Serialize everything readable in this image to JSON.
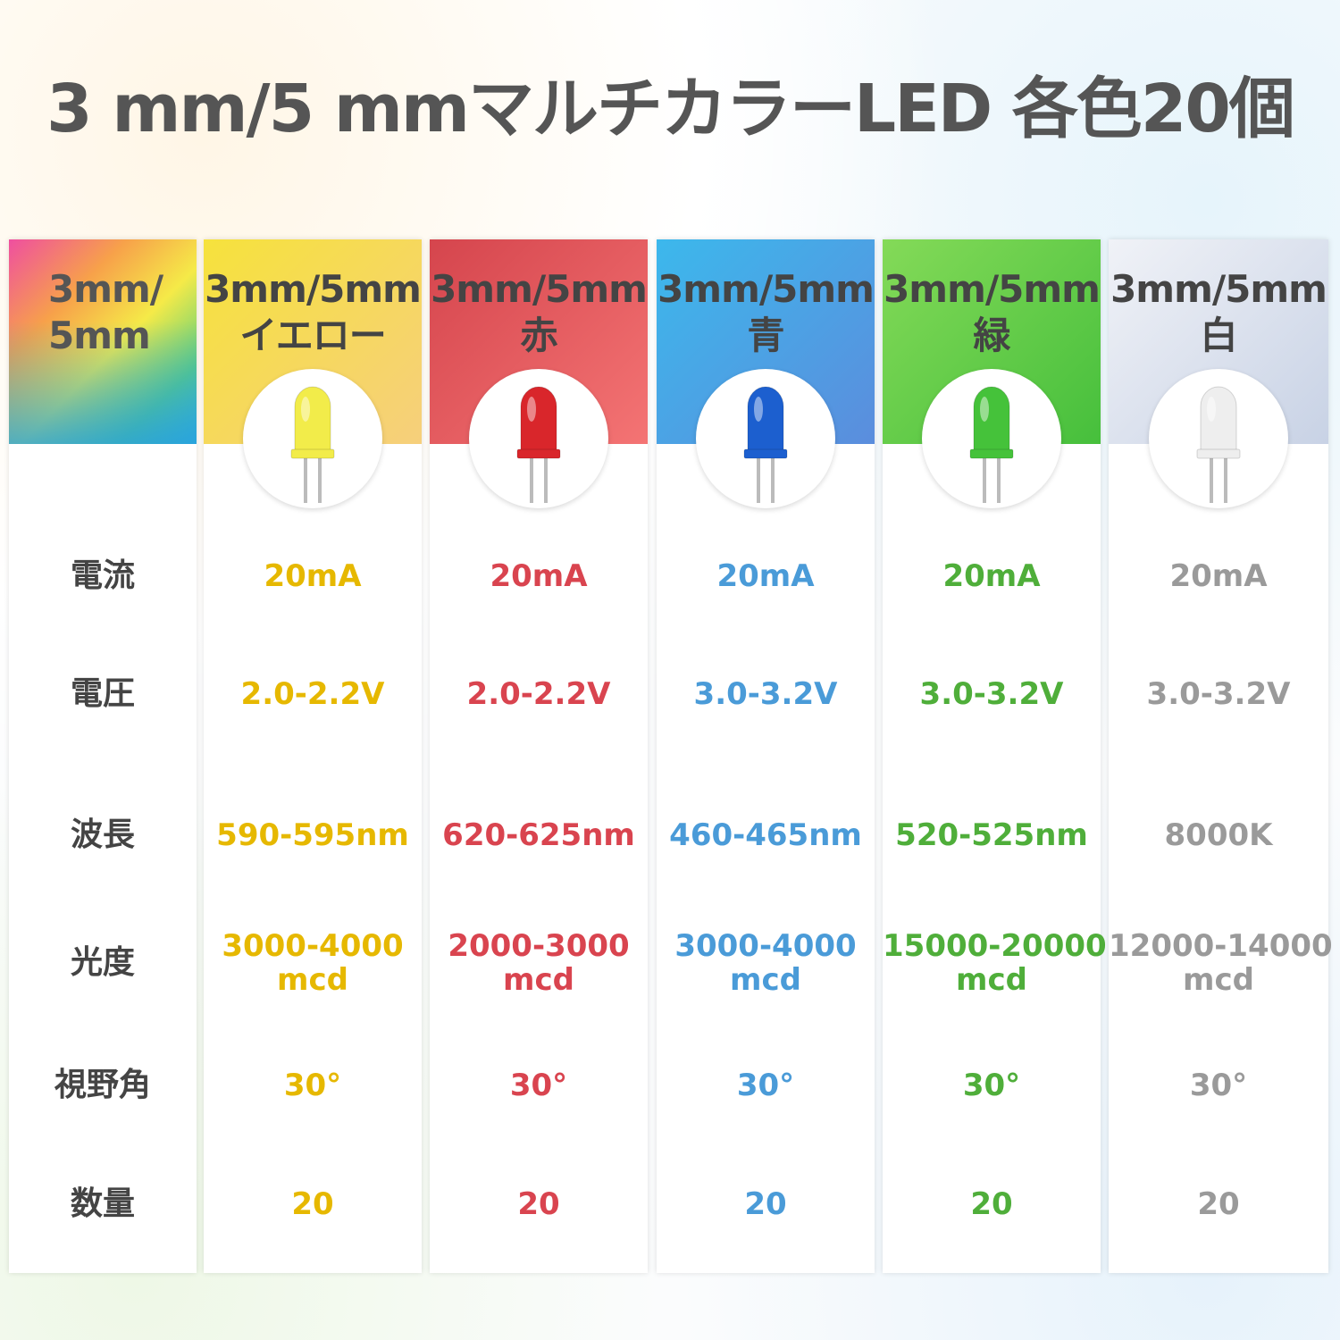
{
  "title": "3 mm/5 mmマルチカラーLED 各色20個",
  "table": {
    "corner": [
      "3mm/",
      "5mm"
    ],
    "row_labels": [
      "電流",
      "電圧",
      "波長",
      "光度",
      "視野角",
      "数量"
    ],
    "columns": [
      {
        "header": [
          "3mm/5mm",
          "イエロー"
        ],
        "color": "#e6b800",
        "header_colors": [
          "#f6e23c",
          "#f6cf7c"
        ],
        "led_color": "#f2ec4a",
        "cells": [
          [
            "20mA"
          ],
          [
            "2.0-2.2V"
          ],
          [
            "590-595nm"
          ],
          [
            "3000-4000",
            "mcd"
          ],
          [
            "30°"
          ],
          [
            "20"
          ]
        ]
      },
      {
        "header": [
          "3mm/5mm",
          "赤"
        ],
        "color": "#d9444f",
        "header_colors": [
          "#d5454d",
          "#f47474"
        ],
        "led_color": "#d9262b",
        "cells": [
          [
            "20mA"
          ],
          [
            "2.0-2.2V"
          ],
          [
            "620-625nm"
          ],
          [
            "2000-3000",
            "mcd"
          ],
          [
            "30°"
          ],
          [
            "20"
          ]
        ]
      },
      {
        "header": [
          "3mm/5mm",
          "青"
        ],
        "color": "#4a9bd8",
        "header_colors": [
          "#3cb8ec",
          "#5b8ddd"
        ],
        "led_color": "#1c5fcf",
        "cells": [
          [
            "20mA"
          ],
          [
            "3.0-3.2V"
          ],
          [
            "460-465nm"
          ],
          [
            "3000-4000",
            "mcd"
          ],
          [
            "30°"
          ],
          [
            "20"
          ]
        ]
      },
      {
        "header": [
          "3mm/5mm",
          "緑"
        ],
        "color": "#4fae3a",
        "header_colors": [
          "#84da58",
          "#46bf3c"
        ],
        "led_color": "#45c23a",
        "cells": [
          [
            "20mA"
          ],
          [
            "3.0-3.2V"
          ],
          [
            "520-525nm"
          ],
          [
            "15000-20000",
            "mcd"
          ],
          [
            "30°"
          ],
          [
            "20"
          ]
        ]
      },
      {
        "header": [
          "3mm/5mm",
          "白"
        ],
        "color": "#9a9a9a",
        "header_colors": [
          "#f0f2f7",
          "#c8d2e5"
        ],
        "led_color": "#eeeeee",
        "cells": [
          [
            "20mA"
          ],
          [
            "3.0-3.2V"
          ],
          [
            "8000K"
          ],
          [
            "12000-14000",
            "mcd"
          ],
          [
            "30°"
          ],
          [
            "20"
          ]
        ]
      }
    ]
  }
}
